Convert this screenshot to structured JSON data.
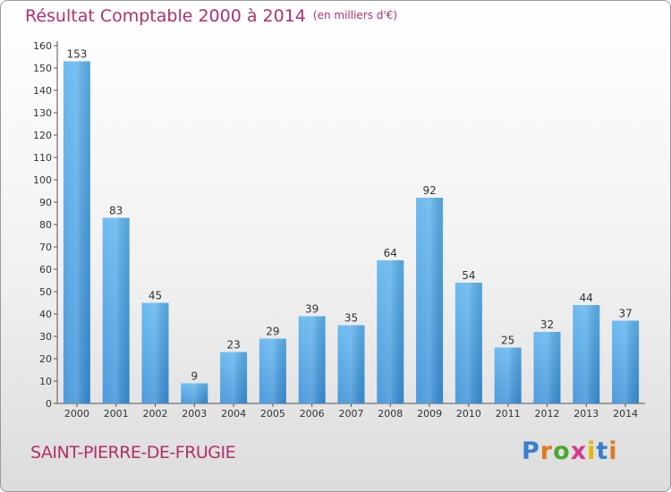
{
  "chart_data": {
    "type": "bar",
    "title": "Résultat Comptable 2000 à 2014",
    "subtitle": "(en milliers d'€)",
    "categories": [
      "2000",
      "2001",
      "2002",
      "2003",
      "2004",
      "2005",
      "2006",
      "2007",
      "2008",
      "2009",
      "2010",
      "2011",
      "2012",
      "2013",
      "2014"
    ],
    "values": [
      153,
      83,
      45,
      9,
      23,
      29,
      39,
      35,
      64,
      92,
      54,
      25,
      32,
      44,
      37
    ],
    "ylim": [
      0,
      160
    ],
    "yticks": [
      0,
      10,
      20,
      30,
      40,
      50,
      60,
      70,
      80,
      90,
      100,
      110,
      120,
      130,
      140,
      150,
      160
    ],
    "xlabel": "",
    "ylabel": "",
    "grid": false,
    "bar_color": "#3a8fd8"
  },
  "footer": {
    "place": "SAINT-PIERRE-DE-FRUGIE",
    "logo": "Proxiti"
  }
}
